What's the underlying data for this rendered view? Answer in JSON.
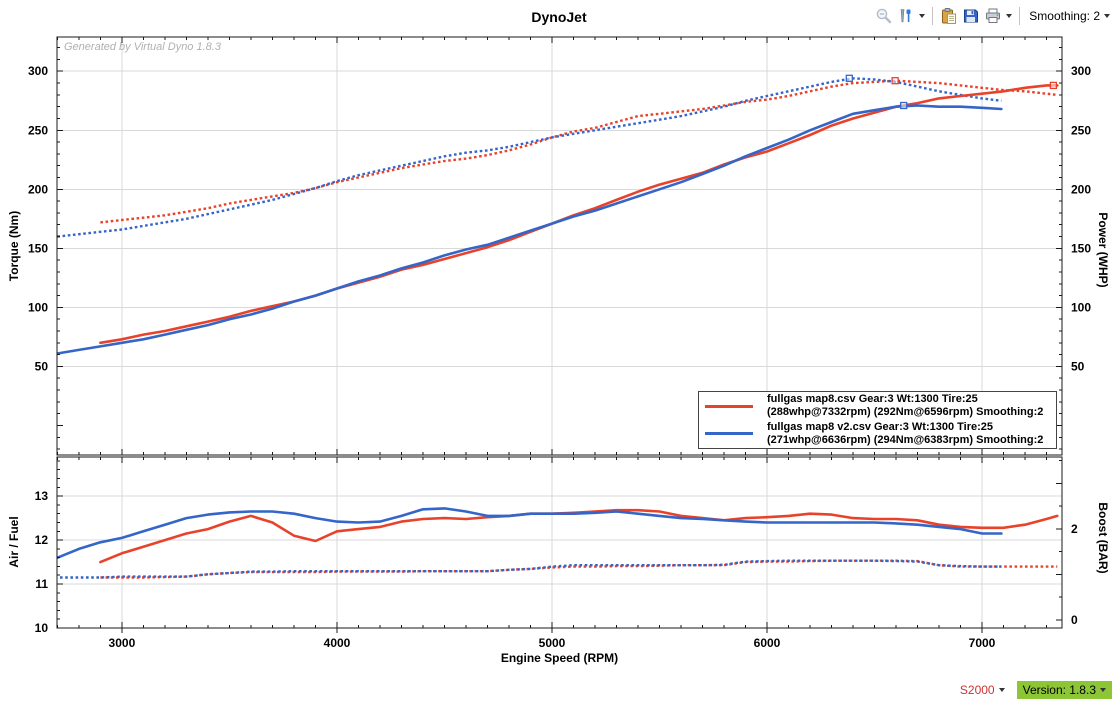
{
  "header": {
    "title": "DynoJet",
    "toolbar": {
      "icons": [
        {
          "name": "zoom-out-icon",
          "disabled": true
        },
        {
          "name": "chart-tools-icon",
          "has_dropdown": true
        },
        {
          "name": "paste-icon"
        },
        {
          "name": "save-icon"
        },
        {
          "name": "print-icon",
          "has_dropdown": true
        }
      ],
      "smoothing_label": "Smoothing: 2"
    }
  },
  "watermark": "Generated by Virtual Dyno 1.8.3",
  "legend": {
    "entries": [
      {
        "color": "#e8432a",
        "line1": "fullgas map8.csv Gear:3 Wt:1300 Tire:25",
        "line2": "(288whp@7332rpm) (292Nm@6596rpm) Smoothing:2"
      },
      {
        "color": "#3465c8",
        "line1": "fullgas map8 v2.csv Gear:3 Wt:1300 Tire:25",
        "line2": "(271whp@6636rpm) (294Nm@6383rpm) Smoothing:2"
      }
    ]
  },
  "status_bar": {
    "car_label": "S2000",
    "car_color": "#cc3333",
    "version_label": "Version: 1.8.3",
    "version_bg": "#8cc636"
  },
  "chart_data": [
    {
      "type": "line",
      "title": "DynoJet",
      "xlabel": "Engine Speed (RPM)",
      "ylabel_left": "Torque (Nm)",
      "ylabel_right": "Power (WHP)",
      "x_range": [
        2698,
        7372
      ],
      "x_ticks": [
        3000,
        4000,
        5000,
        6000,
        7000
      ],
      "y_range": [
        -25,
        329
      ],
      "y_ticks": [
        50,
        100,
        150,
        200,
        250,
        300
      ],
      "grid": true,
      "legend_position": "bottom-right",
      "series": [
        {
          "name": "fullgas map8.csv power (WHP)",
          "color": "#e8432a",
          "style": "solid",
          "axis": "left",
          "peak": {
            "x": 7332,
            "y": 288,
            "label": "288whp@7332rpm"
          },
          "x": [
            2900,
            3000,
            3100,
            3200,
            3300,
            3400,
            3500,
            3600,
            3700,
            3800,
            3900,
            4000,
            4100,
            4200,
            4300,
            4400,
            4500,
            4600,
            4700,
            4800,
            4900,
            5000,
            5100,
            5200,
            5300,
            5400,
            5500,
            5600,
            5700,
            5800,
            5900,
            6000,
            6100,
            6200,
            6300,
            6400,
            6500,
            6600,
            6700,
            6800,
            6900,
            7000,
            7100,
            7200,
            7300,
            7350
          ],
          "y": [
            70,
            73,
            77,
            80,
            84,
            88,
            92,
            97,
            101,
            105,
            110,
            116,
            121,
            126,
            132,
            136,
            141,
            146,
            151,
            157,
            164,
            171,
            178,
            184,
            191,
            198,
            204,
            209,
            214,
            221,
            227,
            232,
            239,
            246,
            254,
            260,
            265,
            270,
            273,
            277,
            279,
            281,
            283,
            286,
            288,
            288
          ]
        },
        {
          "name": "fullgas map8.csv torque (Nm)",
          "color": "#e8432a",
          "style": "dotted",
          "axis": "left",
          "peak": {
            "x": 6596,
            "y": 292,
            "label": "292Nm@6596rpm"
          },
          "x": [
            2900,
            3000,
            3100,
            3200,
            3300,
            3400,
            3500,
            3600,
            3700,
            3800,
            3900,
            4000,
            4100,
            4200,
            4300,
            4400,
            4500,
            4600,
            4700,
            4800,
            4900,
            5000,
            5100,
            5200,
            5300,
            5400,
            5500,
            5600,
            5700,
            5800,
            5900,
            6000,
            6100,
            6200,
            6300,
            6400,
            6500,
            6600,
            6700,
            6800,
            6900,
            7000,
            7100,
            7200,
            7300,
            7350
          ],
          "y": [
            172,
            174,
            176,
            178,
            181,
            184,
            188,
            191,
            194,
            197,
            201,
            206,
            210,
            214,
            218,
            221,
            224,
            226,
            229,
            233,
            238,
            244,
            249,
            252,
            257,
            262,
            264,
            266,
            268,
            271,
            274,
            276,
            279,
            283,
            287,
            290,
            291,
            292,
            291,
            290,
            288,
            286,
            284,
            283,
            281,
            280
          ]
        },
        {
          "name": "fullgas map8 v2.csv power (WHP)",
          "color": "#3465c8",
          "style": "solid",
          "axis": "left",
          "peak": {
            "x": 6636,
            "y": 271,
            "label": "271whp@6636rpm"
          },
          "x": [
            2700,
            2800,
            2900,
            3000,
            3100,
            3200,
            3300,
            3400,
            3500,
            3600,
            3700,
            3800,
            3900,
            4000,
            4100,
            4200,
            4300,
            4400,
            4500,
            4600,
            4700,
            4800,
            4900,
            5000,
            5100,
            5200,
            5300,
            5400,
            5500,
            5600,
            5700,
            5800,
            5900,
            6000,
            6100,
            6200,
            6300,
            6400,
            6500,
            6600,
            6700,
            6800,
            6900,
            7000,
            7090
          ],
          "y": [
            61,
            64,
            67,
            70,
            73,
            77,
            81,
            85,
            90,
            94,
            99,
            105,
            110,
            116,
            122,
            127,
            133,
            138,
            144,
            149,
            153,
            159,
            165,
            171,
            177,
            182,
            188,
            194,
            200,
            206,
            213,
            220,
            228,
            235,
            242,
            250,
            257,
            264,
            267,
            270,
            271,
            270,
            270,
            269,
            268
          ]
        },
        {
          "name": "fullgas map8 v2.csv torque (Nm)",
          "color": "#3465c8",
          "style": "dotted",
          "axis": "left",
          "peak": {
            "x": 6383,
            "y": 294,
            "label": "294Nm@6383rpm"
          },
          "x": [
            2700,
            2800,
            2900,
            3000,
            3100,
            3200,
            3300,
            3400,
            3500,
            3600,
            3700,
            3800,
            3900,
            4000,
            4100,
            4200,
            4300,
            4400,
            4500,
            4600,
            4700,
            4800,
            4900,
            5000,
            5100,
            5200,
            5300,
            5400,
            5500,
            5600,
            5700,
            5800,
            5900,
            6000,
            6100,
            6200,
            6300,
            6400,
            6500,
            6600,
            6700,
            6800,
            6900,
            7000,
            7090
          ],
          "y": [
            160,
            162,
            164,
            166,
            169,
            172,
            175,
            179,
            183,
            187,
            191,
            196,
            201,
            207,
            212,
            216,
            220,
            224,
            228,
            231,
            233,
            236,
            240,
            244,
            247,
            250,
            253,
            256,
            259,
            262,
            266,
            270,
            275,
            279,
            283,
            287,
            291,
            294,
            293,
            291,
            287,
            283,
            280,
            277,
            275
          ]
        }
      ]
    },
    {
      "type": "line",
      "xlabel": "Engine Speed (RPM)",
      "ylabel_left": "Air / Fuel",
      "ylabel_right": "Boost (BAR)",
      "x_range": [
        2698,
        7372
      ],
      "x_ticks": [
        3000,
        4000,
        5000,
        6000,
        7000
      ],
      "y_range": [
        10,
        13.89
      ],
      "y_ticks": [
        10,
        11,
        12,
        13
      ],
      "y2_range": [
        -0.18,
        3.58
      ],
      "y2_ticks": [
        0,
        2
      ],
      "grid": true,
      "series": [
        {
          "name": "fullgas map8.csv boost (BAR)",
          "color": "#e8432a",
          "style": "dotted",
          "axis": "right",
          "x": [
            2900,
            3000,
            3100,
            3200,
            3300,
            3400,
            3500,
            3600,
            3700,
            3800,
            3900,
            4000,
            4100,
            4200,
            4300,
            4400,
            4500,
            4600,
            4700,
            4800,
            4900,
            5000,
            5100,
            5200,
            5300,
            5400,
            5500,
            5600,
            5700,
            5800,
            5900,
            6000,
            6100,
            6200,
            6300,
            6400,
            6500,
            6600,
            6700,
            6800,
            6900,
            7000,
            7100,
            7200,
            7300,
            7350
          ],
          "y": [
            0.93,
            0.93,
            0.93,
            0.94,
            0.95,
            1.0,
            1.03,
            1.05,
            1.05,
            1.05,
            1.05,
            1.06,
            1.06,
            1.06,
            1.06,
            1.07,
            1.07,
            1.07,
            1.07,
            1.1,
            1.12,
            1.15,
            1.17,
            1.17,
            1.18,
            1.18,
            1.19,
            1.2,
            1.2,
            1.2,
            1.27,
            1.28,
            1.28,
            1.29,
            1.3,
            1.3,
            1.3,
            1.3,
            1.29,
            1.2,
            1.17,
            1.17,
            1.17,
            1.17,
            1.17,
            1.17
          ]
        },
        {
          "name": "fullgas map8 v2.csv boost (BAR)",
          "color": "#3465c8",
          "style": "dotted",
          "axis": "right",
          "x": [
            2700,
            2800,
            2900,
            3000,
            3100,
            3200,
            3300,
            3400,
            3500,
            3600,
            3700,
            3800,
            3900,
            4000,
            4100,
            4200,
            4300,
            4400,
            4500,
            4600,
            4700,
            4800,
            4900,
            5000,
            5100,
            5200,
            5300,
            5400,
            5500,
            5600,
            5700,
            5800,
            5900,
            6000,
            6100,
            6200,
            6300,
            6400,
            6500,
            6600,
            6700,
            6800,
            6900,
            7000,
            7090
          ],
          "y": [
            0.93,
            0.93,
            0.93,
            0.95,
            0.95,
            0.95,
            0.95,
            1.0,
            1.03,
            1.06,
            1.06,
            1.07,
            1.07,
            1.07,
            1.07,
            1.07,
            1.07,
            1.07,
            1.07,
            1.07,
            1.07,
            1.1,
            1.12,
            1.17,
            1.2,
            1.2,
            1.2,
            1.2,
            1.2,
            1.2,
            1.2,
            1.21,
            1.28,
            1.29,
            1.3,
            1.3,
            1.3,
            1.3,
            1.3,
            1.29,
            1.28,
            1.2,
            1.18,
            1.17,
            1.17
          ]
        },
        {
          "name": "fullgas map8.csv air/fuel",
          "color": "#e8432a",
          "style": "solid",
          "axis": "left",
          "x": [
            2900,
            3000,
            3100,
            3200,
            3300,
            3400,
            3500,
            3600,
            3700,
            3800,
            3900,
            4000,
            4100,
            4200,
            4300,
            4400,
            4500,
            4600,
            4700,
            4800,
            4900,
            5000,
            5100,
            5200,
            5300,
            5400,
            5500,
            5600,
            5700,
            5800,
            5900,
            6000,
            6100,
            6200,
            6300,
            6400,
            6500,
            6600,
            6700,
            6800,
            6900,
            7000,
            7100,
            7200,
            7300,
            7350
          ],
          "y": [
            11.5,
            11.7,
            11.85,
            12.0,
            12.15,
            12.25,
            12.42,
            12.55,
            12.4,
            12.1,
            11.98,
            12.2,
            12.25,
            12.3,
            12.42,
            12.48,
            12.5,
            12.48,
            12.52,
            12.55,
            12.6,
            12.6,
            12.62,
            12.65,
            12.68,
            12.68,
            12.65,
            12.55,
            12.5,
            12.45,
            12.5,
            12.52,
            12.55,
            12.6,
            12.58,
            12.5,
            12.48,
            12.48,
            12.45,
            12.35,
            12.3,
            12.28,
            12.28,
            12.35,
            12.48,
            12.55
          ]
        },
        {
          "name": "fullgas map8 v2.csv air/fuel",
          "color": "#3465c8",
          "style": "solid",
          "axis": "left",
          "x": [
            2700,
            2800,
            2900,
            3000,
            3100,
            3200,
            3300,
            3400,
            3500,
            3600,
            3700,
            3800,
            3900,
            4000,
            4100,
            4200,
            4300,
            4400,
            4500,
            4600,
            4700,
            4800,
            4900,
            5000,
            5100,
            5200,
            5300,
            5400,
            5500,
            5600,
            5700,
            5800,
            5900,
            6000,
            6100,
            6200,
            6300,
            6400,
            6500,
            6600,
            6700,
            6800,
            6900,
            7000,
            7090
          ],
          "y": [
            11.6,
            11.8,
            11.95,
            12.05,
            12.2,
            12.35,
            12.5,
            12.58,
            12.63,
            12.65,
            12.65,
            12.6,
            12.5,
            12.42,
            12.4,
            12.42,
            12.55,
            12.7,
            12.72,
            12.65,
            12.55,
            12.55,
            12.6,
            12.6,
            12.6,
            12.62,
            12.65,
            12.6,
            12.55,
            12.5,
            12.48,
            12.45,
            12.42,
            12.4,
            12.4,
            12.4,
            12.4,
            12.4,
            12.4,
            12.38,
            12.35,
            12.3,
            12.25,
            12.15,
            12.15
          ]
        }
      ]
    }
  ]
}
